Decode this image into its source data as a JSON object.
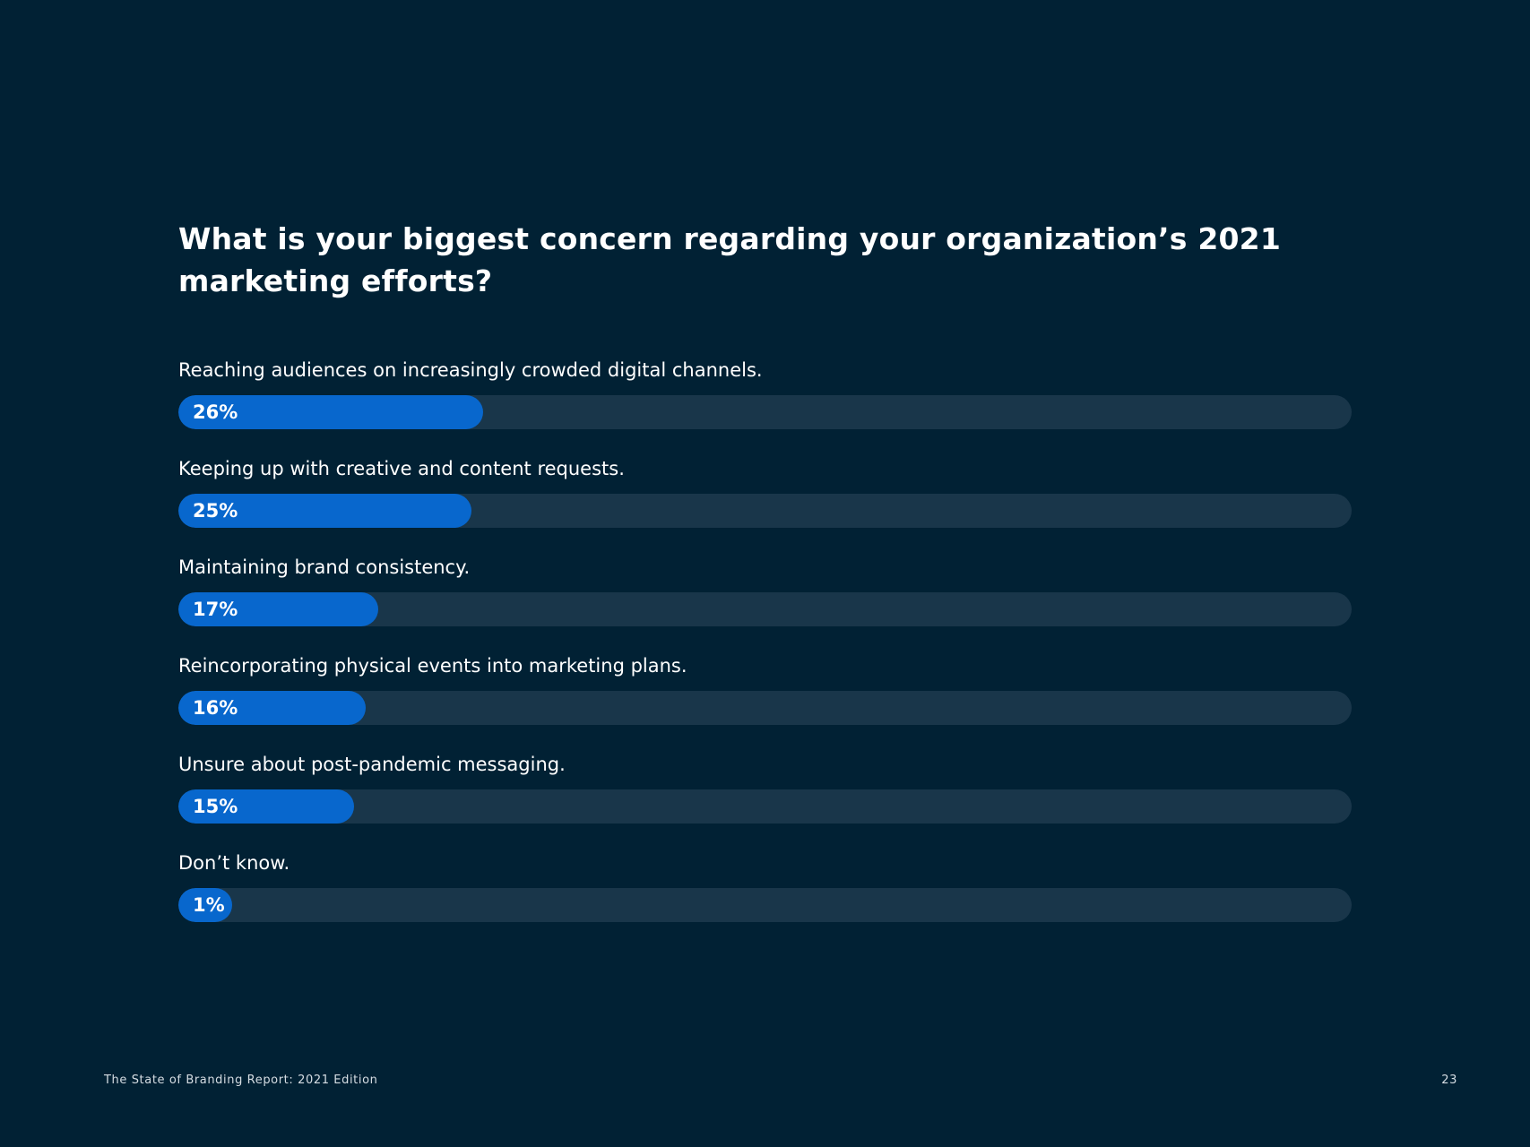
{
  "title": "What is your biggest concern regarding your organization’s 2021 marketing efforts?",
  "colors": {
    "background": "#012134",
    "bar_fill": "#0867cd",
    "bar_track": "#19364a"
  },
  "chart_data": {
    "type": "bar",
    "orientation": "horizontal",
    "title": "What is your biggest concern regarding your organization’s 2021 marketing efforts?",
    "categories": [
      "Reaching audiences on increasingly crowded digital channels.",
      "Keeping up with creative and content requests.",
      "Maintaining brand consistency.",
      "Reincorporating physical events into marketing plans.",
      "Unsure about post-pandemic messaging.",
      "Don’t know."
    ],
    "values": [
      26,
      25,
      17,
      16,
      15,
      1
    ],
    "value_labels": [
      "26%",
      "25%",
      "17%",
      "16%",
      "15%",
      "1%"
    ],
    "unit": "%",
    "xlim": [
      0,
      100
    ],
    "grid": false,
    "legend": "none"
  },
  "footer": {
    "report_name": "The State of Branding Report: 2021 Edition",
    "page_number": "23"
  }
}
